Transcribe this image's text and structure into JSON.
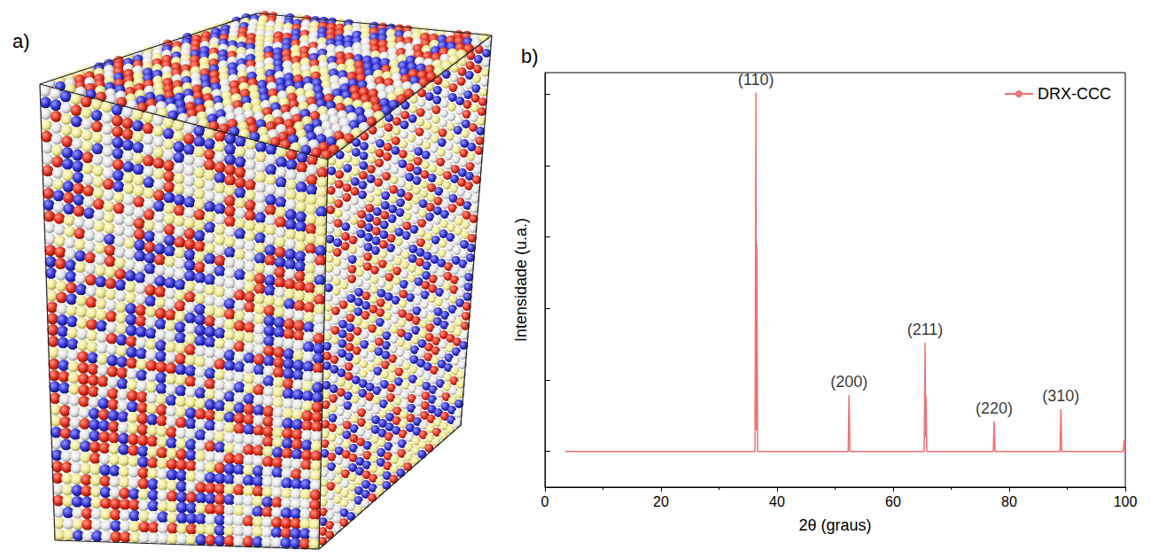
{
  "figure": {
    "panel_a_label": "a)",
    "panel_b_label": "b)"
  },
  "chart_data": {
    "type": "line",
    "x_label": "2θ (graus)",
    "y_label": "Intensidade (u.a.)",
    "series": [
      {
        "name": "DRX-CCC",
        "color": "#f07070",
        "x": [
          3.5,
          36.2,
          36.35,
          36.45,
          36.5,
          36.65,
          52.25,
          52.4,
          52.55,
          65.35,
          65.5,
          65.6,
          65.65,
          65.8,
          77.25,
          77.4,
          77.55,
          88.75,
          88.9,
          89.05,
          99.65,
          99.8,
          99.95,
          100
        ],
        "values": [
          0,
          0,
          5.02,
          0.3,
          2.9,
          0,
          0,
          0.79,
          0,
          0,
          1.52,
          0.2,
          0.77,
          0,
          0,
          0.42,
          0,
          0,
          0.59,
          0,
          0,
          0.16,
          0,
          0
        ]
      }
    ],
    "xlim": [
      0,
      100
    ],
    "xticks": [
      0,
      20,
      40,
      60,
      80,
      100
    ],
    "ylim": [
      -0.5,
      5.3
    ],
    "yticks": [
      0,
      1,
      2,
      3,
      4,
      5
    ],
    "tick_labels": "x",
    "grid": false,
    "legend": "upper right",
    "annotations": [
      {
        "x": 36.35,
        "y": 5.02,
        "text": "(110)"
      },
      {
        "x": 52.4,
        "y": 0.79,
        "text": "(200)"
      },
      {
        "x": 65.5,
        "y": 1.52,
        "text": "(211)"
      },
      {
        "x": 77.4,
        "y": 0.42,
        "text": "(220)"
      },
      {
        "x": 88.9,
        "y": 0.59,
        "text": "(310)"
      }
    ]
  }
}
